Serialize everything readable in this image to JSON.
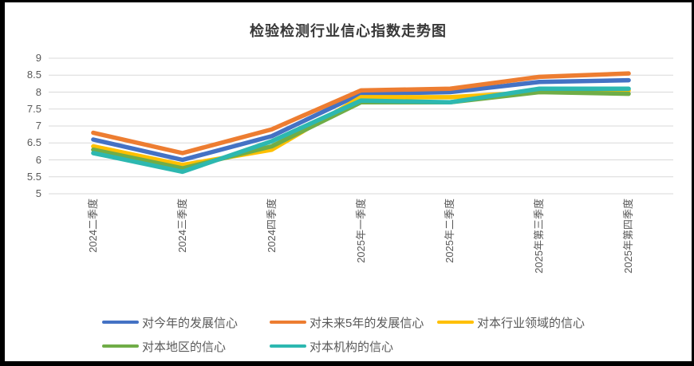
{
  "title": "检验检测行业信心指数走势图",
  "colors": {
    "grid": "#D9D9D9",
    "axis_text": "#595959",
    "title_text": "#383838",
    "background": "#FFFFFF",
    "frame_border": "#000000"
  },
  "chart_data": {
    "type": "line",
    "title": "检验检测行业信心指数走势图",
    "categories": [
      "2024二季度",
      "2024三季度",
      "2024四季度",
      "2025年一季度",
      "2025年二季度",
      "2025年第三季度",
      "2025年第四季度"
    ],
    "series": [
      {
        "name": "对今年的发展信心",
        "color": "#4472C4",
        "values": [
          6.6,
          6.0,
          6.7,
          7.95,
          8.0,
          8.3,
          8.35
        ]
      },
      {
        "name": "对未来5年的发展信心",
        "color": "#ED7D31",
        "values": [
          6.8,
          6.2,
          6.9,
          8.05,
          8.1,
          8.45,
          8.55
        ]
      },
      {
        "name": "对本行业领域的信心",
        "color": "#FFC000",
        "values": [
          6.4,
          5.85,
          6.3,
          7.85,
          7.85,
          8.0,
          8.05
        ]
      },
      {
        "name": "对本地区的信心",
        "color": "#70AD47",
        "values": [
          6.3,
          5.75,
          6.4,
          7.7,
          7.7,
          8.0,
          7.95
        ]
      },
      {
        "name": "对本机构的信心",
        "color": "#2DB8B0",
        "values": [
          6.2,
          5.65,
          6.55,
          7.75,
          7.7,
          8.1,
          8.1
        ]
      }
    ],
    "ylim": [
      5,
      9
    ],
    "ytick_step": 0.5,
    "yticks": [
      "9",
      "8.5",
      "8",
      "7.5",
      "7",
      "6.5",
      "6",
      "5.5",
      "5"
    ],
    "xlabel": "",
    "ylabel": "",
    "grid": true,
    "legend_position": "bottom"
  }
}
